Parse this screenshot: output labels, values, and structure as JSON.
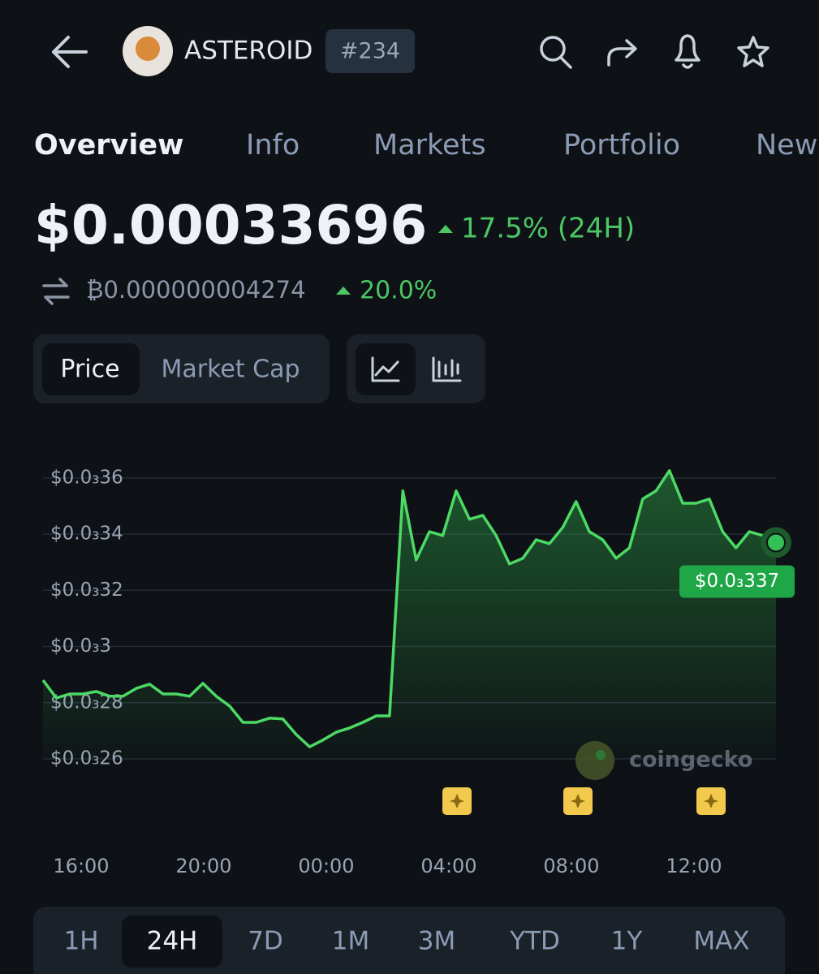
{
  "header": {
    "coin_name": "ASTEROID",
    "rank": "#234"
  },
  "tabs": [
    "Overview",
    "Info",
    "Markets",
    "Portfolio",
    "New"
  ],
  "price": {
    "value": "$0.00033696",
    "change": "17.5% (24H)",
    "btc_value": "₿0.000000004274",
    "btc_change": "20.0%"
  },
  "toggle": [
    "Price",
    "Market Cap"
  ],
  "chart_data": {
    "type": "line",
    "color": "#4cd964",
    "values": [
      0.000288,
      0.0002817,
      0.0002831,
      0.0002831,
      0.000284,
      0.0002823,
      0.0002823,
      0.0002851,
      0.0002866,
      0.0002831,
      0.0002831,
      0.0002823,
      0.0002869,
      0.0002823,
      0.0002788,
      0.000273,
      0.000273,
      0.0002745,
      0.0002742,
      0.0002687,
      0.0002643,
      0.0002667,
      0.0002695,
      0.000271,
      0.000273,
      0.0002753,
      0.0002753,
      0.0003554,
      0.0003308,
      0.0003409,
      0.0003395,
      0.0003554,
      0.0003453,
      0.0003467,
      0.0003395,
      0.0003294,
      0.0003314,
      0.000338,
      0.0003366,
      0.0003424,
      0.0003516,
      0.0003409,
      0.000338,
      0.0003314,
      0.0003351,
      0.0003525,
      0.0003554,
      0.0003626,
      0.000351,
      0.000351,
      0.0003525,
      0.0003409,
      0.0003351,
      0.0003409,
      0.0003395,
      0.000337
    ],
    "ylim": [
      0.00026,
      0.000364
    ],
    "yticks": [
      {
        "value": 0.00026,
        "label": "$0.0₃26"
      },
      {
        "value": 0.00028,
        "label": "$0.0₃28"
      },
      {
        "value": 0.0003,
        "label": "$0.0₃3"
      },
      {
        "value": 0.00032,
        "label": "$0.0₃32"
      },
      {
        "value": 0.00034,
        "label": "$0.0₃34"
      },
      {
        "value": 0.00036,
        "label": "$0.0₃36"
      }
    ],
    "xticks": [
      "16:00",
      "20:00",
      "00:00",
      "04:00",
      "08:00",
      "12:00"
    ],
    "grid": true,
    "last_label": "$0.0₃337",
    "watermark": "coingecko"
  },
  "ranges": [
    "1H",
    "24H",
    "7D",
    "1M",
    "3M",
    "YTD",
    "1Y",
    "MAX"
  ],
  "selected_range": 1
}
